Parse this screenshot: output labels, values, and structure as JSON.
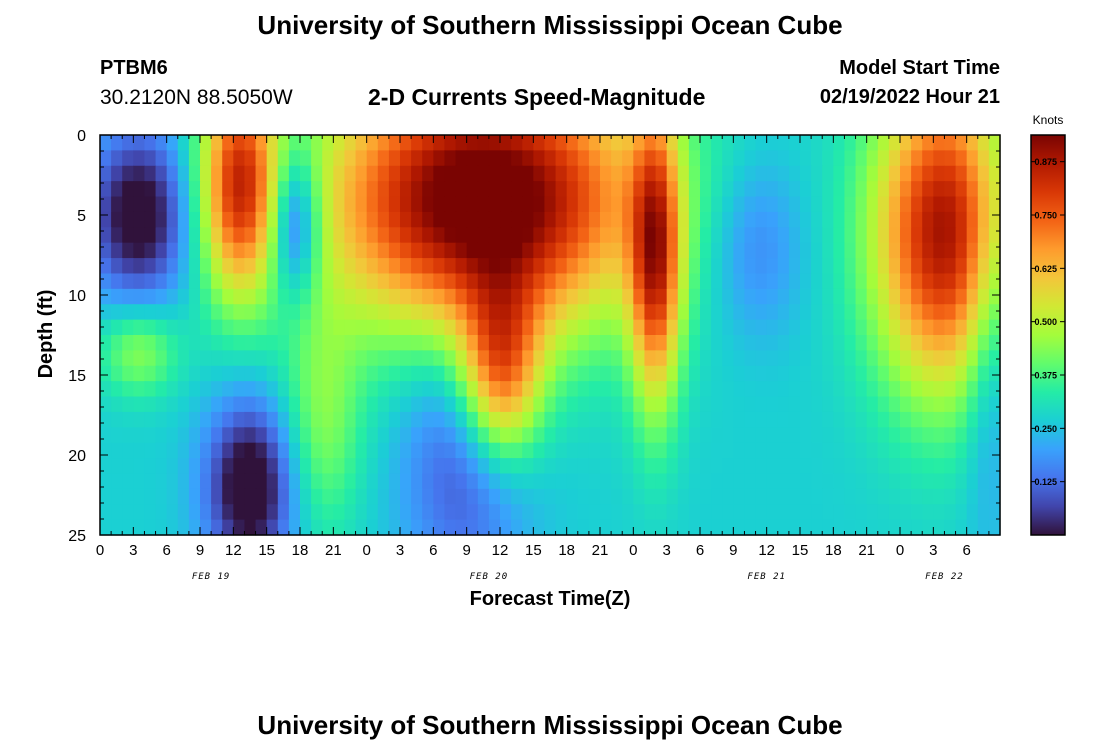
{
  "header": {
    "title": "University of Southern Mississippi Ocean Cube",
    "station": "PTBM6",
    "coordinates": "30.2120N  88.5050W",
    "start_label": "Model Start Time",
    "start_value": "02/19/2022 Hour 21"
  },
  "footer": {
    "title": "University of Southern Mississippi Ocean Cube"
  },
  "colors": {
    "scale": [
      "#30123b",
      "#4145ab",
      "#4675ed",
      "#39a2fc",
      "#1bcfd4",
      "#24eca6",
      "#61fc6c",
      "#a4fc3b",
      "#d1e834",
      "#f3c63a",
      "#fe9b2d",
      "#f36315",
      "#d93806",
      "#b11901",
      "#7a0402"
    ]
  },
  "chart_data": {
    "type": "heatmap",
    "title": "2-D Currents Speed-Magnitude",
    "xlabel": "Forecast Time(Z)",
    "ylabel": "Depth (ft)",
    "ylim": [
      0,
      25
    ],
    "x_range_hours": [
      0,
      81
    ],
    "x_tick_labels": [
      "0",
      "3",
      "6",
      "9",
      "12",
      "15",
      "18",
      "21",
      "0",
      "3",
      "6",
      "9",
      "12",
      "15",
      "18",
      "21",
      "0",
      "3",
      "6",
      "9",
      "12",
      "15",
      "18",
      "21",
      "0",
      "3",
      "6"
    ],
    "y_ticks": [
      0,
      5,
      10,
      15,
      20,
      25
    ],
    "y_tick_labels": [
      "0",
      "5",
      "10",
      "15",
      "20",
      "25"
    ],
    "day_labels": [
      {
        "label": "FEB 19",
        "hour": 10
      },
      {
        "label": "FEB 20",
        "hour": 35
      },
      {
        "label": "FEB 21",
        "hour": 60
      },
      {
        "label": "FEB 22",
        "hour": 76
      }
    ],
    "colorbar": {
      "title": "Knots",
      "min": 0.0,
      "max": 0.9375,
      "tick_values": [
        0.125,
        0.25,
        0.375,
        0.5,
        0.625,
        0.75,
        0.875
      ],
      "tick_labels": [
        "0.125",
        "0.250",
        "0.375",
        "0.500",
        "0.625",
        "0.750",
        "0.875"
      ]
    },
    "speed_features": [
      {
        "t": 3.5,
        "d": 5.0,
        "amp": -0.32,
        "st": 3.2,
        "sd": 3.8
      },
      {
        "t": 12.5,
        "d": 3.0,
        "amp": 0.52,
        "st": 2.5,
        "sd": 5.0
      },
      {
        "t": 17.5,
        "d": 5.5,
        "amp": -0.3,
        "st": 1.6,
        "sd": 3.2
      },
      {
        "t": 3.5,
        "d": 13.5,
        "amp": 0.18,
        "st": 2.5,
        "sd": 2.0
      },
      {
        "t": 13.5,
        "d": 22.0,
        "amp": -0.34,
        "st": 2.8,
        "sd": 3.8
      },
      {
        "t": 20.0,
        "d": 18.0,
        "amp": 0.16,
        "st": 2.5,
        "sd": 5.0
      },
      {
        "t": 33.0,
        "d": 20.0,
        "amp": -0.2,
        "st": 4.0,
        "sd": 6.0
      },
      {
        "t": 34.5,
        "d": 4.0,
        "amp": 0.75,
        "st": 10.0,
        "sd": 6.0
      },
      {
        "t": 36.0,
        "d": 15.0,
        "amp": 0.45,
        "st": 2.6,
        "sd": 4.0
      },
      {
        "t": 50.0,
        "d": 8.0,
        "amp": 0.48,
        "st": 1.6,
        "sd": 6.5
      },
      {
        "t": 59.0,
        "d": 7.0,
        "amp": -0.12,
        "st": 3.0,
        "sd": 4.0
      },
      {
        "t": 76.0,
        "d": 6.0,
        "amp": 0.62,
        "st": 4.5,
        "sd": 7.0
      },
      {
        "t": 80.0,
        "d": 12.0,
        "amp": -0.14,
        "st": 1.6,
        "sd": 8.0
      }
    ]
  }
}
